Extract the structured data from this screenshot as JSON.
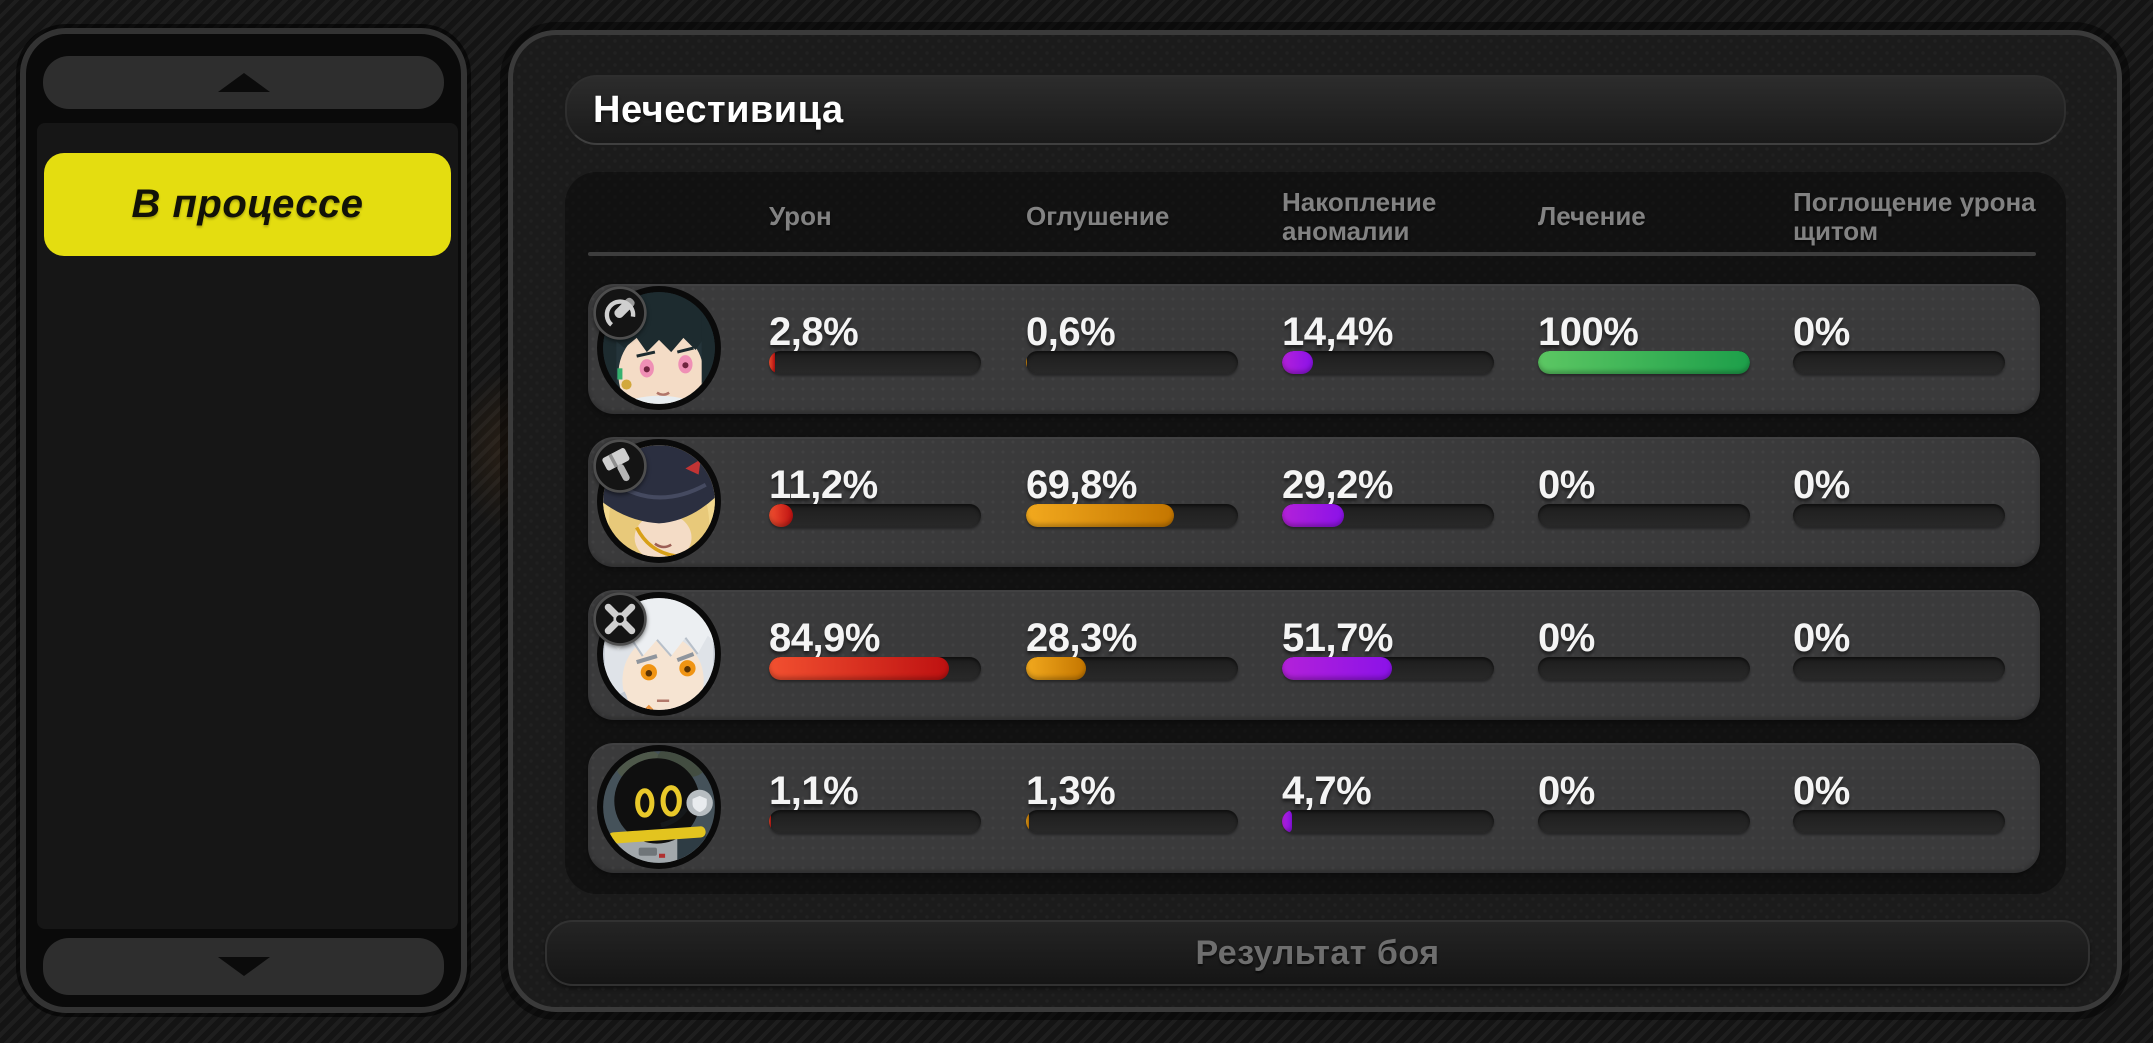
{
  "left_panel": {
    "status_button_label": "В процессе",
    "icons": {
      "scroll_up": "triangle-up",
      "scroll_down": "triangle-down"
    }
  },
  "main": {
    "title": "Нечестивица",
    "columns": [
      "Урон",
      "Оглушение",
      "Накопление аномалии",
      "Лечение",
      "Поглощение урона щитом"
    ],
    "rows": [
      {
        "name": "character-1",
        "badge_icon": "anomaly-specialty-icon",
        "values": [
          "2,8%",
          "0,6%",
          "14,4%",
          "100%",
          "0%"
        ],
        "percents": [
          2.8,
          0.6,
          14.4,
          100,
          0
        ]
      },
      {
        "name": "character-2",
        "badge_icon": "stun-specialty-icon",
        "values": [
          "11,2%",
          "69,8%",
          "29,2%",
          "0%",
          "0%"
        ],
        "percents": [
          11.2,
          69.8,
          29.2,
          0,
          0
        ]
      },
      {
        "name": "character-3",
        "badge_icon": "attack-specialty-icon",
        "values": [
          "84,9%",
          "28,3%",
          "51,7%",
          "0%",
          "0%"
        ],
        "percents": [
          84.9,
          28.3,
          51.7,
          0,
          0
        ]
      },
      {
        "name": "bangboo",
        "badge_icon": null,
        "values": [
          "1,1%",
          "1,3%",
          "4,7%",
          "0%",
          "0%"
        ],
        "percents": [
          1.1,
          1.3,
          4.7,
          0,
          0
        ]
      }
    ],
    "footer_button_label": "Результат боя"
  },
  "colors": {
    "accent_yellow": "#e4dd10",
    "bar_track": "#232323",
    "header_text": "#828282",
    "value_text": "#f4f4f4",
    "bar_gradients": [
      [
        "#f25030",
        "#be1111"
      ],
      [
        "#f2a91e",
        "#c47600"
      ],
      [
        "#b321d9",
        "#8b12e8"
      ],
      [
        "#5cc763",
        "#1d9f4a"
      ],
      [
        "#303030",
        "#303030"
      ]
    ]
  }
}
